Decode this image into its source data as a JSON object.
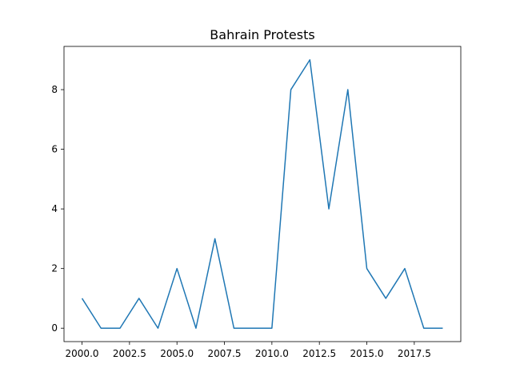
{
  "chart_data": {
    "type": "line",
    "title": "Bahrain Protests",
    "xlabel": "",
    "ylabel": "",
    "xlim": [
      1999.05,
      2019.95
    ],
    "ylim": [
      -0.45,
      9.45
    ],
    "x_ticks": [
      2000.0,
      2002.5,
      2005.0,
      2007.5,
      2010.0,
      2012.5,
      2015.0,
      2017.5
    ],
    "x_tick_labels": [
      "2000.0",
      "2002.5",
      "2005.0",
      "2007.5",
      "2010.0",
      "2012.5",
      "2015.0",
      "2017.5"
    ],
    "y_ticks": [
      0,
      2,
      4,
      6,
      8
    ],
    "y_tick_labels": [
      "0",
      "2",
      "4",
      "6",
      "8"
    ],
    "grid": false,
    "line_color": "#1f77b4",
    "series": [
      {
        "x": [
          2000,
          2001,
          2002,
          2003,
          2004,
          2005,
          2006,
          2007,
          2008,
          2009,
          2010,
          2011,
          2012,
          2013,
          2014,
          2015,
          2016,
          2017,
          2018,
          2019
        ],
        "values": [
          1,
          0,
          0,
          1,
          0,
          2,
          0,
          3,
          0,
          0,
          0,
          8,
          9,
          4,
          8,
          2,
          1,
          2,
          0,
          0
        ]
      }
    ]
  }
}
